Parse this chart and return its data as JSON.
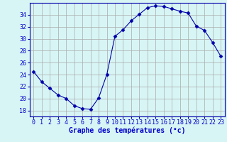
{
  "hours": [
    0,
    1,
    2,
    3,
    4,
    5,
    6,
    7,
    8,
    9,
    10,
    11,
    12,
    13,
    14,
    15,
    16,
    17,
    18,
    19,
    20,
    21,
    22,
    23
  ],
  "temps": [
    24.5,
    22.8,
    21.7,
    20.6,
    20.0,
    18.8,
    18.3,
    18.2,
    20.1,
    24.0,
    30.4,
    31.5,
    33.0,
    34.1,
    35.2,
    35.5,
    35.4,
    35.0,
    34.6,
    34.3,
    32.1,
    31.4,
    29.4,
    27.1
  ],
  "line_color": "#0000aa",
  "marker": "D",
  "marker_size": 2.5,
  "background_color": "#d8f5f5",
  "grid_color": "#aaaaaa",
  "xlabel": "Graphe des températures (°c)",
  "xlabel_color": "#0000cc",
  "xlabel_fontsize": 7,
  "tick_color": "#0000cc",
  "tick_fontsize": 6,
  "ylim": [
    17,
    36
  ],
  "yticks": [
    18,
    20,
    22,
    24,
    26,
    28,
    30,
    32,
    34
  ],
  "spine_color": "#0000aa",
  "axis_bg": "#d8f5f5"
}
